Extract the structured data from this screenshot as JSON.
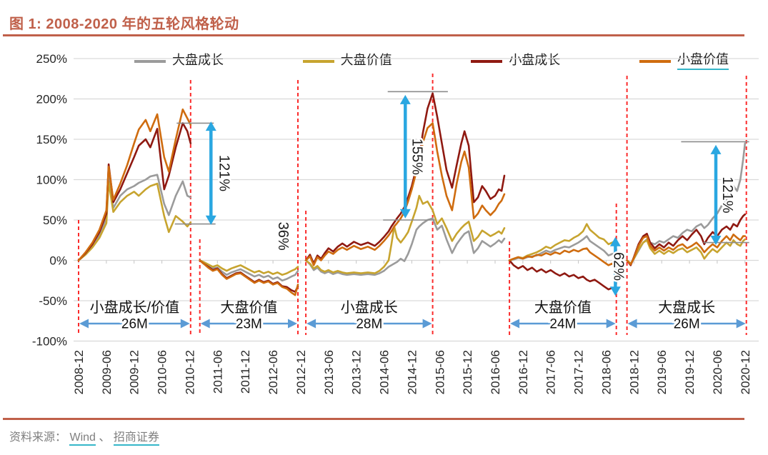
{
  "title": "图 1:  2008-2020 年的五轮风格轮动",
  "source": {
    "prefix": "资料来源：",
    "links": [
      "Wind",
      "招商证券"
    ],
    "separator": "、"
  },
  "colors": {
    "accent_title": "#c0604a",
    "grid": "#d9d9d9",
    "tick": "#c4c4c4",
    "axis_text": "#262626",
    "boundary_dash": "#fb2b2b",
    "measure_arrow": "#2aa7e1",
    "duration_arrow": "#5b9bd5",
    "measure_cap": "#8c8c8c",
    "source_text": "#7f7f7f",
    "link_underline": "#35b6c9",
    "series_gray": "#9b9b9b",
    "series_gold": "#c7a42f",
    "series_darkred": "#8f1911",
    "series_orange": "#cf6c0f"
  },
  "legend": [
    {
      "label": "大盘成长",
      "key": "gray",
      "color": "#9b9b9b",
      "underline": false
    },
    {
      "label": "大盘价值",
      "key": "gold",
      "color": "#c7a42f",
      "underline": false
    },
    {
      "label": "小盘成长",
      "key": "darkred",
      "color": "#8f1911",
      "underline": false
    },
    {
      "label": "小盘价值",
      "key": "orange",
      "color": "#cf6c0f",
      "underline": true
    }
  ],
  "chart_data": {
    "type": "line",
    "title": "2008-2020 年的五轮风格轮动",
    "ylim": [
      -100,
      250
    ],
    "y_axis": {
      "labels": [
        "250%",
        "200%",
        "150%",
        "100%",
        "50%",
        "0%",
        "-50%",
        "-100%"
      ],
      "values": [
        250,
        200,
        150,
        100,
        50,
        0,
        -50,
        -100
      ]
    },
    "x_axis": {
      "labels": [
        "2008-12",
        "2009-06",
        "2009-12",
        "2010-06",
        "2010-12",
        "2011-06",
        "2011-12",
        "2012-06",
        "2012-12",
        "2013-06",
        "2013-12",
        "2014-06",
        "2014-12",
        "2015-06",
        "2015-12",
        "2016-06",
        "2016-12",
        "2017-06",
        "2017-12",
        "2018-06",
        "2018-12",
        "2019-06",
        "2019-12",
        "2020-06",
        "2020-12"
      ],
      "label_step_months": 6
    },
    "phases": [
      {
        "label": "小盘成长/价值",
        "duration": "26M",
        "start_month": 0,
        "end_month": 24.2
      },
      {
        "label": "大盘价值",
        "duration": "23M",
        "start_month": 26.2,
        "end_month": 47.4
      },
      {
        "label": "小盘成长",
        "duration": "28M",
        "start_month": 49.1,
        "end_month": 76.5
      },
      {
        "label": "大盘价值",
        "duration": "24M",
        "start_month": 93.1,
        "end_month": 116.2
      },
      {
        "label": "大盘成长",
        "duration": "26M",
        "start_month": 118.5,
        "end_month": 144.3
      }
    ],
    "annotations": [
      {
        "label": "121%",
        "kind": "arrow",
        "month": 28.6,
        "value_top": 172,
        "value_bottom": 44,
        "label_offset": 12,
        "caps": [
          {
            "value": 170,
            "m1": 21.2,
            "m2": 29.2
          },
          {
            "value": 45,
            "m1": 20.8,
            "m2": 29.6
          }
        ]
      },
      {
        "label": "36%",
        "kind": "text",
        "month": 43.2,
        "value": 30
      },
      {
        "label": "155%",
        "kind": "arrow",
        "month": 70.6,
        "value_top": 205,
        "value_bottom": 52,
        "label_offset": 10,
        "caps": [
          {
            "value": 209,
            "m1": 66.8,
            "m2": 79.8
          },
          {
            "value": 50,
            "m1": 65.8,
            "m2": 77
          }
        ]
      },
      {
        "label": "62%",
        "kind": "arrow",
        "month": 116,
        "value_top": 29,
        "value_bottom": -44,
        "label_offset": -2,
        "caps": []
      },
      {
        "label": "121%",
        "kind": "arrow",
        "month": 137.7,
        "value_top": 143,
        "value_bottom": 19,
        "label_offset": 10,
        "caps": [
          {
            "value": 147,
            "m1": 130.2,
            "m2": 144.9
          },
          {
            "value": 22,
            "m1": 135,
            "m2": 144.9
          }
        ]
      }
    ],
    "segments": [
      {
        "phase": 1,
        "months": [
          0,
          1.5,
          3,
          4.5,
          6,
          6.5,
          7.5,
          9,
          10.5,
          12,
          13,
          14.5,
          15.5,
          17,
          18.5,
          19.5,
          21,
          22.5,
          23.5,
          24.2
        ],
        "series": {
          "gray": [
            0,
            8,
            18,
            32,
            52,
            103,
            65,
            80,
            88,
            92,
            96,
            100,
            104,
            106,
            70,
            56,
            80,
            98,
            80,
            78
          ],
          "gold": [
            0,
            7,
            16,
            28,
            46,
            97,
            60,
            72,
            80,
            85,
            80,
            88,
            92,
            95,
            55,
            35,
            55,
            48,
            42,
            47
          ],
          "darkred": [
            0,
            9,
            20,
            35,
            58,
            119,
            72,
            88,
            108,
            128,
            142,
            150,
            140,
            163,
            88,
            105,
            140,
            170,
            160,
            145
          ],
          "orange": [
            0,
            10,
            22,
            38,
            62,
            116,
            75,
            95,
            118,
            145,
            162,
            174,
            160,
            181,
            128,
            110,
            150,
            187,
            176,
            168
          ]
        }
      },
      {
        "phase": 2,
        "months": [
          26.2,
          27,
          28,
          29,
          30,
          31,
          32,
          33,
          34,
          35,
          36,
          37,
          38,
          39,
          40,
          41,
          42,
          43,
          44,
          45,
          46,
          46.8,
          47.4
        ],
        "series": {
          "gray": [
            0,
            -3,
            -7,
            -10,
            -9,
            -14,
            -18,
            -15,
            -13,
            -11,
            -14,
            -17,
            -20,
            -18,
            -21,
            -19,
            -23,
            -21,
            -25,
            -23,
            -20,
            -18,
            -13
          ],
          "gold": [
            0,
            -2,
            -5,
            -8,
            -6,
            -10,
            -13,
            -10,
            -8,
            -6,
            -9,
            -12,
            -15,
            -13,
            -16,
            -14,
            -17,
            -15,
            -18,
            -16,
            -13,
            -11,
            -8
          ],
          "darkred": [
            0,
            -4,
            -8,
            -12,
            -10,
            -17,
            -22,
            -19,
            -16,
            -15,
            -19,
            -23,
            -27,
            -24,
            -27,
            -25,
            -29,
            -27,
            -32,
            -33,
            -37,
            -39,
            -32
          ],
          "orange": [
            0,
            -4,
            -9,
            -13,
            -11,
            -18,
            -23,
            -20,
            -17,
            -16,
            -20,
            -24,
            -28,
            -25,
            -28,
            -26,
            -30,
            -28,
            -33,
            -35,
            -40,
            -43,
            -30
          ]
        }
      },
      {
        "phase": 3,
        "months": [
          49.1,
          50,
          50.8,
          51.6,
          52.4,
          53.2,
          54,
          55,
          56,
          57,
          58,
          59.5,
          61,
          62.5,
          64,
          65,
          66,
          67,
          67.6,
          68.2,
          68.8,
          69.6,
          70.4,
          71.2,
          72,
          73,
          73.6,
          74.4,
          75.4,
          76.5,
          77.5,
          78.5,
          79.5,
          80.7,
          81.7,
          82.7,
          83.4,
          84.3,
          85.4,
          86.3,
          87.2,
          88,
          89,
          90,
          90.8,
          91.4,
          92
        ],
        "series": {
          "gray": [
            0,
            -5,
            -12,
            -9,
            -14,
            -16,
            -14,
            -17,
            -15,
            -17,
            -18,
            -17,
            -18,
            -17,
            -18,
            -16,
            -13,
            -8,
            -6,
            -4,
            -2,
            2,
            -1,
            8,
            20,
            38,
            42,
            46,
            50,
            52,
            38,
            43,
            26,
            9,
            20,
            28,
            33,
            36,
            9,
            15,
            24,
            21,
            17,
            21,
            25,
            22,
            27
          ],
          "gold": [
            0,
            -4,
            -10,
            -7,
            -12,
            -14,
            -12,
            -15,
            -13,
            -15,
            -16,
            -15,
            -16,
            -15,
            -16,
            -13,
            -8,
            0,
            20,
            42,
            28,
            22,
            28,
            35,
            48,
            65,
            80,
            70,
            73,
            62,
            45,
            52,
            40,
            24,
            33,
            40,
            44,
            48,
            24,
            29,
            37,
            34,
            30,
            33,
            36,
            33,
            40
          ],
          "darkred": [
            0,
            7,
            -4,
            6,
            2,
            9,
            15,
            11,
            17,
            21,
            17,
            23,
            19,
            22,
            18,
            23,
            29,
            36,
            42,
            47,
            52,
            58,
            66,
            78,
            92,
            115,
            128,
            158,
            188,
            207,
            178,
            145,
            112,
            90,
            118,
            145,
            160,
            142,
            72,
            78,
            92,
            86,
            76,
            80,
            88,
            86,
            105
          ],
          "orange": [
            0,
            5,
            -6,
            4,
            0,
            6,
            11,
            8,
            13,
            16,
            13,
            18,
            14,
            17,
            13,
            18,
            24,
            31,
            36,
            42,
            46,
            52,
            60,
            73,
            88,
            110,
            122,
            146,
            164,
            170,
            135,
            105,
            80,
            62,
            95,
            122,
            135,
            115,
            52,
            58,
            68,
            62,
            56,
            62,
            70,
            74,
            82
          ]
        }
      },
      {
        "phase": 4,
        "months": [
          93.1,
          94,
          95,
          96,
          97,
          98,
          99,
          100,
          101,
          102,
          103,
          104,
          105,
          106,
          107,
          108,
          109,
          109.8,
          110.5,
          111.5,
          112.5,
          113.5,
          114.5,
          115.3,
          116.2
        ],
        "series": {
          "gray": [
            0,
            1,
            3,
            2,
            4,
            5,
            6,
            9,
            12,
            10,
            13,
            15,
            17,
            16,
            19,
            22,
            26,
            30,
            24,
            20,
            16,
            12,
            6,
            8,
            9
          ],
          "gold": [
            0,
            2,
            4,
            3,
            6,
            8,
            10,
            13,
            17,
            15,
            19,
            22,
            25,
            24,
            28,
            31,
            36,
            45,
            38,
            33,
            28,
            26,
            20,
            22,
            25
          ],
          "darkred": [
            0,
            -6,
            -10,
            -7,
            -12,
            -9,
            -14,
            -11,
            -15,
            -12,
            -16,
            -19,
            -16,
            -20,
            -18,
            -22,
            -20,
            -24,
            -26,
            -24,
            -28,
            -32,
            -36,
            -34,
            -37
          ],
          "orange": [
            0,
            2,
            4,
            2,
            5,
            4,
            7,
            6,
            9,
            7,
            10,
            8,
            12,
            10,
            13,
            11,
            14,
            15,
            10,
            6,
            2,
            -2,
            -6,
            -4,
            -8
          ]
        }
      },
      {
        "phase": 5,
        "months": [
          118.5,
          119.3,
          120,
          121,
          122,
          122.8,
          123.5,
          124.5,
          125.5,
          126.5,
          127.5,
          128.5,
          129.5,
          130.5,
          131.5,
          132.5,
          133.5,
          134.5,
          135.2,
          136,
          137,
          138,
          139,
          140,
          140.8,
          141.5,
          142.3,
          143,
          143.6,
          144
        ],
        "series": {
          "gray": [
            0,
            -5,
            2,
            12,
            22,
            26,
            22,
            20,
            24,
            22,
            26,
            30,
            28,
            34,
            38,
            36,
            42,
            45,
            40,
            44,
            52,
            58,
            68,
            75,
            88,
            92,
            86,
            100,
            125,
            145
          ],
          "gold": [
            0,
            -4,
            2,
            14,
            22,
            25,
            15,
            8,
            12,
            8,
            12,
            9,
            13,
            15,
            10,
            13,
            16,
            10,
            2,
            8,
            14,
            10,
            16,
            22,
            18,
            25,
            20,
            18,
            24,
            26
          ],
          "darkred": [
            0,
            -6,
            4,
            20,
            30,
            33,
            22,
            15,
            20,
            16,
            22,
            18,
            25,
            30,
            25,
            32,
            38,
            30,
            20,
            28,
            35,
            30,
            38,
            42,
            38,
            45,
            42,
            50,
            55,
            57
          ],
          "orange": [
            0,
            -5,
            3,
            18,
            28,
            30,
            18,
            12,
            16,
            12,
            16,
            13,
            18,
            20,
            15,
            18,
            22,
            16,
            10,
            15,
            20,
            16,
            24,
            30,
            25,
            32,
            28,
            25,
            30,
            30
          ]
        }
      }
    ]
  }
}
